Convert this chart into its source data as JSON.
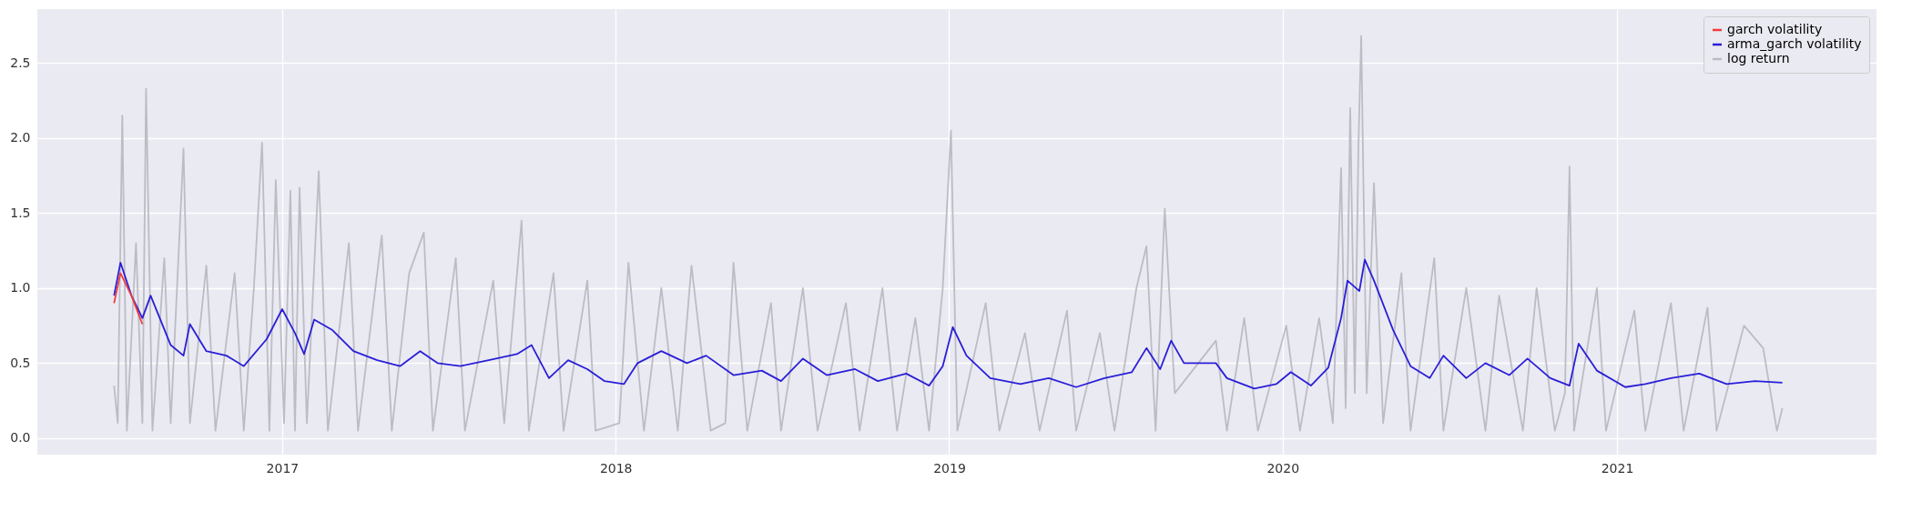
{
  "chart_data": {
    "type": "line",
    "xlim": [
      "2016-04-08",
      "2021-10-12"
    ],
    "xticks": [
      "2017",
      "2018",
      "2019",
      "2020",
      "2021"
    ],
    "ylim": [
      -0.11,
      2.86
    ],
    "yticks": [
      {
        "value": 0,
        "label": "0.0"
      },
      {
        "value": 0.5,
        "label": "0.5"
      },
      {
        "value": 1,
        "label": "1.0"
      },
      {
        "value": 1.5,
        "label": "1.5"
      },
      {
        "value": 2,
        "label": "2.0"
      },
      {
        "value": 2.5,
        "label": "2.5"
      }
    ],
    "grid": true,
    "legend": "top right",
    "line_style": "solid",
    "series": [
      {
        "name": "garch volatility",
        "color": "#f03c3c",
        "x": [
          "2016-07-01",
          "2016-07-08",
          "2016-07-20",
          "2016-08-01"
        ],
        "values": [
          0.9,
          1.1,
          0.95,
          0.76
        ]
      },
      {
        "name": "arma_garch volatility",
        "color": "#2a1fd8",
        "x": [
          "2016-07-01",
          "2016-07-08",
          "2016-07-20",
          "2016-08-01",
          "2016-08-10",
          "2016-09-01",
          "2016-09-15",
          "2016-09-22",
          "2016-10-10",
          "2016-11-01",
          "2016-11-20",
          "2016-12-15",
          "2017-01-01",
          "2017-01-15",
          "2017-01-25",
          "2017-02-05",
          "2017-02-25",
          "2017-03-20",
          "2017-04-15",
          "2017-05-10",
          "2017-06-01",
          "2017-06-20",
          "2017-07-15",
          "2017-08-15",
          "2017-09-15",
          "2017-10-01",
          "2017-10-20",
          "2017-11-10",
          "2017-12-01",
          "2017-12-20",
          "2018-01-10",
          "2018-01-25",
          "2018-02-20",
          "2018-03-20",
          "2018-04-10",
          "2018-05-10",
          "2018-06-10",
          "2018-07-01",
          "2018-07-25",
          "2018-08-20",
          "2018-09-20",
          "2018-10-15",
          "2018-11-15",
          "2018-12-10",
          "2018-12-25",
          "2019-01-05",
          "2019-01-20",
          "2019-02-15",
          "2019-03-20",
          "2019-04-20",
          "2019-05-20",
          "2019-06-20",
          "2019-07-20",
          "2019-08-05",
          "2019-08-20",
          "2019-09-01",
          "2019-09-15",
          "2019-10-20",
          "2019-11-01",
          "2019-12-01",
          "2019-12-25",
          "2020-01-10",
          "2020-02-01",
          "2020-02-20",
          "2020-03-05",
          "2020-03-12",
          "2020-03-25",
          "2020-03-31",
          "2020-04-10",
          "2020-05-01",
          "2020-05-20",
          "2020-06-10",
          "2020-06-25",
          "2020-07-20",
          "2020-08-10",
          "2020-09-05",
          "2020-09-25",
          "2020-10-20",
          "2020-11-10",
          "2020-11-20",
          "2020-12-10",
          "2021-01-10",
          "2021-02-01",
          "2021-03-01",
          "2021-04-01",
          "2021-05-01",
          "2021-06-01",
          "2021-07-01"
        ],
        "values": [
          0.95,
          1.17,
          0.95,
          0.8,
          0.95,
          0.62,
          0.55,
          0.76,
          0.58,
          0.55,
          0.48,
          0.66,
          0.86,
          0.7,
          0.56,
          0.79,
          0.72,
          0.58,
          0.52,
          0.48,
          0.58,
          0.5,
          0.48,
          0.52,
          0.56,
          0.62,
          0.4,
          0.52,
          0.46,
          0.38,
          0.36,
          0.5,
          0.58,
          0.5,
          0.55,
          0.42,
          0.45,
          0.38,
          0.53,
          0.42,
          0.46,
          0.38,
          0.43,
          0.35,
          0.48,
          0.74,
          0.55,
          0.4,
          0.36,
          0.4,
          0.34,
          0.4,
          0.44,
          0.6,
          0.46,
          0.65,
          0.5,
          0.5,
          0.4,
          0.33,
          0.36,
          0.44,
          0.35,
          0.47,
          0.8,
          1.05,
          0.98,
          1.19,
          1.05,
          0.72,
          0.48,
          0.4,
          0.55,
          0.4,
          0.5,
          0.42,
          0.53,
          0.4,
          0.35,
          0.63,
          0.45,
          0.34,
          0.36,
          0.4,
          0.43,
          0.36,
          0.38,
          0.37
        ]
      },
      {
        "name": "log return",
        "color": "#bdbcc6",
        "x": [
          "2016-07-01",
          "2016-07-05",
          "2016-07-10",
          "2016-07-15",
          "2016-07-25",
          "2016-08-01",
          "2016-08-05",
          "2016-08-12",
          "2016-08-25",
          "2016-09-01",
          "2016-09-15",
          "2016-09-22",
          "2016-10-10",
          "2016-10-20",
          "2016-11-10",
          "2016-11-20",
          "2016-12-01",
          "2016-12-10",
          "2016-12-18",
          "2016-12-25",
          "2017-01-03",
          "2017-01-10",
          "2017-01-15",
          "2017-01-20",
          "2017-01-28",
          "2017-02-10",
          "2017-02-20",
          "2017-03-15",
          "2017-03-25",
          "2017-04-20",
          "2017-05-01",
          "2017-05-20",
          "2017-06-05",
          "2017-06-15",
          "2017-07-10",
          "2017-07-20",
          "2017-08-20",
          "2017-09-01",
          "2017-09-20",
          "2017-09-28",
          "2017-10-25",
          "2017-11-05",
          "2017-12-01",
          "2017-12-10",
          "2018-01-05",
          "2018-01-15",
          "2018-02-01",
          "2018-02-20",
          "2018-03-10",
          "2018-03-25",
          "2018-04-15",
          "2018-05-01",
          "2018-05-10",
          "2018-05-25",
          "2018-06-20",
          "2018-07-01",
          "2018-07-25",
          "2018-08-10",
          "2018-09-10",
          "2018-09-25",
          "2018-10-20",
          "2018-11-05",
          "2018-11-25",
          "2018-12-10",
          "2018-12-25",
          "2019-01-03",
          "2019-01-10",
          "2019-02-10",
          "2019-02-25",
          "2019-03-25",
          "2019-04-10",
          "2019-05-10",
          "2019-05-20",
          "2019-06-15",
          "2019-07-01",
          "2019-07-25",
          "2019-08-05",
          "2019-08-15",
          "2019-08-25",
          "2019-09-05",
          "2019-10-20",
          "2019-11-01",
          "2019-11-20",
          "2019-12-05",
          "2020-01-05",
          "2020-01-20",
          "2020-02-10",
          "2020-02-25",
          "2020-03-05",
          "2020-03-10",
          "2020-03-15",
          "2020-03-20",
          "2020-03-24",
          "2020-03-27",
          "2020-04-02",
          "2020-04-10",
          "2020-04-20",
          "2020-05-10",
          "2020-05-20",
          "2020-06-15",
          "2020-06-25",
          "2020-07-20",
          "2020-08-10",
          "2020-08-25",
          "2020-09-20",
          "2020-10-05",
          "2020-10-25",
          "2020-11-05",
          "2020-11-10",
          "2020-11-15",
          "2020-12-10",
          "2020-12-20",
          "2021-01-20",
          "2021-02-01",
          "2021-03-01",
          "2021-03-15",
          "2021-04-10",
          "2021-04-20",
          "2021-05-20",
          "2021-06-10",
          "2021-06-25",
          "2021-07-01"
        ],
        "values": [
          0.35,
          0.1,
          2.15,
          0.05,
          1.3,
          0.1,
          2.33,
          0.05,
          1.2,
          0.1,
          1.93,
          0.1,
          1.15,
          0.05,
          1.1,
          0.05,
          1.0,
          1.97,
          0.05,
          1.72,
          0.1,
          1.65,
          0.05,
          1.67,
          0.1,
          1.78,
          0.05,
          1.3,
          0.05,
          1.35,
          0.05,
          1.1,
          1.37,
          0.05,
          1.2,
          0.05,
          1.05,
          0.1,
          1.45,
          0.05,
          1.1,
          0.05,
          1.05,
          0.05,
          0.1,
          1.17,
          0.05,
          1.0,
          0.05,
          1.15,
          0.05,
          0.1,
          1.17,
          0.05,
          0.9,
          0.05,
          1.0,
          0.05,
          0.9,
          0.05,
          1.0,
          0.05,
          0.8,
          0.05,
          1.0,
          2.05,
          0.05,
          0.9,
          0.05,
          0.7,
          0.05,
          0.85,
          0.05,
          0.7,
          0.05,
          1.0,
          1.28,
          0.05,
          1.53,
          0.3,
          0.65,
          0.05,
          0.8,
          0.05,
          0.75,
          0.05,
          0.8,
          0.1,
          1.8,
          0.2,
          2.2,
          0.3,
          1.95,
          2.68,
          0.3,
          1.7,
          0.1,
          1.1,
          0.05,
          1.2,
          0.05,
          1.0,
          0.05,
          0.95,
          0.05,
          1.0,
          0.05,
          0.3,
          1.81,
          0.05,
          1.0,
          0.05,
          0.85,
          0.05,
          0.9,
          0.05,
          0.87,
          0.05,
          0.75,
          0.6,
          0.05,
          0.2
        ]
      }
    ]
  }
}
